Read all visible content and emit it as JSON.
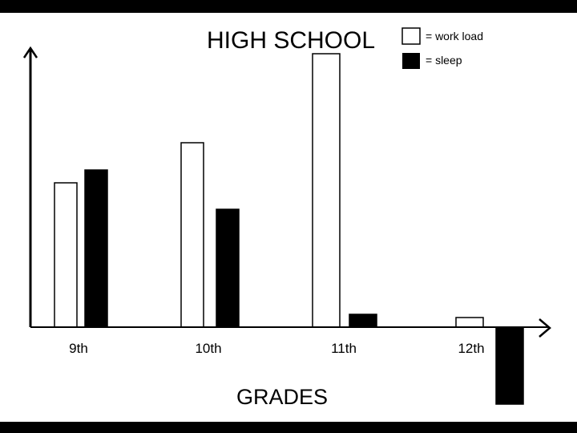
{
  "chart_data": {
    "type": "bar",
    "title": "HIGH SCHOOL",
    "xlabel": "GRADES",
    "ylabel": "",
    "categories": [
      "9th",
      "10th",
      "11th",
      "12th"
    ],
    "series": [
      {
        "name": "= work load",
        "values": [
          180,
          230,
          341,
          12
        ],
        "color": "#ffffff"
      },
      {
        "name": "= sleep",
        "values": [
          196,
          147,
          16,
          -96
        ],
        "color": "#000000"
      }
    ],
    "ylim": [
      -100,
      350
    ],
    "grid": false,
    "legend_position": "top-right"
  }
}
